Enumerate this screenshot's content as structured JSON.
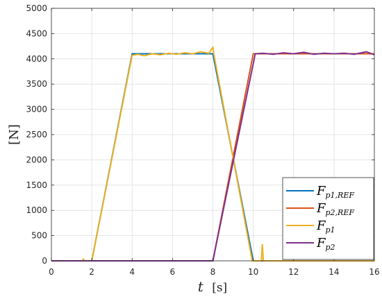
{
  "chart_data": {
    "type": "line",
    "xlabel_var": "t",
    "xlabel_unit": "[s]",
    "ylabel": "[N]",
    "xlim": [
      0,
      16
    ],
    "ylim": [
      0,
      5000
    ],
    "xticks": [
      0,
      2,
      4,
      6,
      8,
      10,
      12,
      14,
      16
    ],
    "yticks": [
      0,
      500,
      1000,
      1500,
      2000,
      2500,
      3000,
      3500,
      4000,
      4500,
      5000
    ],
    "grid": true,
    "legend_position": "lower-right",
    "series": [
      {
        "name": "F_{p1,REF}",
        "legend_main": "F",
        "legend_sub": "p1,REF",
        "color": "#0072BD",
        "points": [
          [
            0,
            0
          ],
          [
            2,
            0
          ],
          [
            4,
            4100
          ],
          [
            8,
            4100
          ],
          [
            10,
            0
          ],
          [
            16,
            0
          ]
        ]
      },
      {
        "name": "F_{p2,REF}",
        "legend_main": "F",
        "legend_sub": "p2,REF",
        "color": "#D95319",
        "points": [
          [
            0,
            0
          ],
          [
            8,
            0
          ],
          [
            10,
            4100
          ],
          [
            16,
            4100
          ]
        ]
      },
      {
        "name": "F_{p1}",
        "legend_main": "F",
        "legend_sub": "p1",
        "color": "#EDB120",
        "points": [
          [
            0,
            0
          ],
          [
            1.55,
            0
          ],
          [
            1.58,
            40
          ],
          [
            1.62,
            0
          ],
          [
            2,
            0
          ],
          [
            4,
            4070
          ],
          [
            4.3,
            4090
          ],
          [
            4.6,
            4060
          ],
          [
            5,
            4100
          ],
          [
            5.4,
            4080
          ],
          [
            5.8,
            4110
          ],
          [
            6.2,
            4090
          ],
          [
            6.6,
            4120
          ],
          [
            7,
            4100
          ],
          [
            7.4,
            4140
          ],
          [
            7.8,
            4110
          ],
          [
            8,
            4230
          ],
          [
            8.05,
            4090
          ],
          [
            9.95,
            0
          ],
          [
            10.4,
            0
          ],
          [
            10.45,
            320
          ],
          [
            10.5,
            0
          ],
          [
            16,
            0
          ]
        ]
      },
      {
        "name": "F_{p2}",
        "legend_main": "F",
        "legend_sub": "p2",
        "color": "#7E2F8E",
        "points": [
          [
            0,
            0
          ],
          [
            8,
            0
          ],
          [
            10.1,
            4100
          ],
          [
            10.5,
            4110
          ],
          [
            11,
            4090
          ],
          [
            11.5,
            4120
          ],
          [
            12,
            4100
          ],
          [
            12.5,
            4130
          ],
          [
            13,
            4090
          ],
          [
            13.5,
            4110
          ],
          [
            14,
            4100
          ],
          [
            14.5,
            4110
          ],
          [
            15,
            4090
          ],
          [
            15.6,
            4140
          ],
          [
            16,
            4080
          ]
        ]
      }
    ]
  }
}
